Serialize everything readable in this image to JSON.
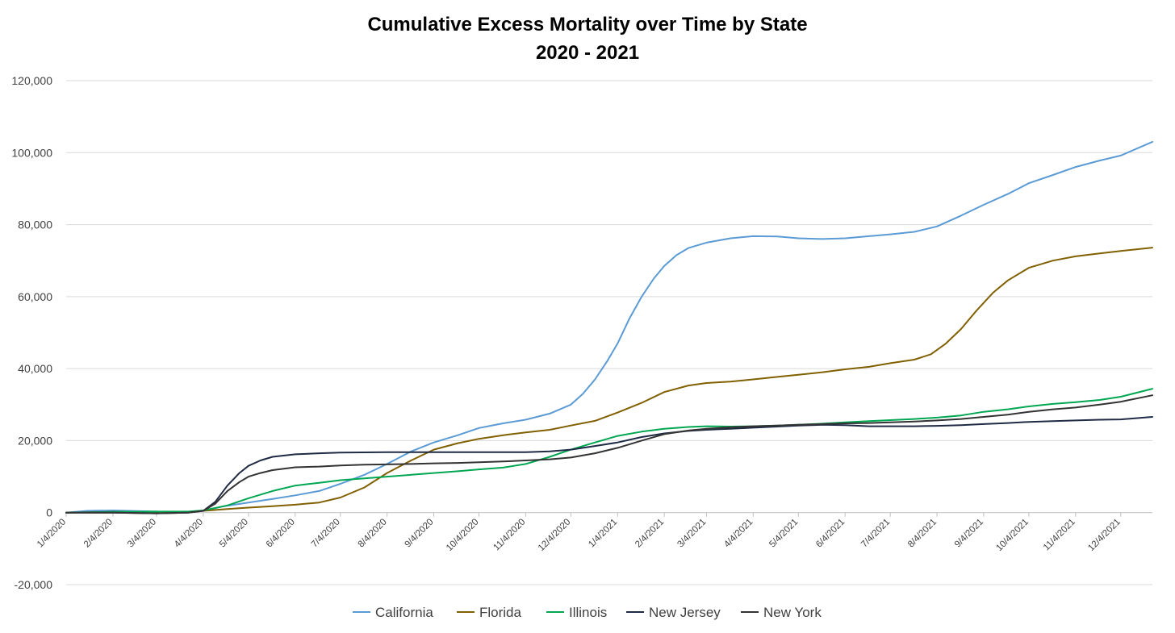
{
  "chart_data": {
    "type": "line",
    "title": "Cumulative Excess Mortality over Time by State",
    "subtitle": "2020 - 2021",
    "xlabel": "",
    "ylabel": "",
    "ylim": [
      -20000,
      120000
    ],
    "yticks": [
      -20000,
      0,
      20000,
      40000,
      60000,
      80000,
      100000,
      120000
    ],
    "ytick_labels": [
      "-20,000",
      "0",
      "20,000",
      "40,000",
      "60,000",
      "80,000",
      "100,000",
      "120,000"
    ],
    "x_tick_labels": [
      "1/4/2020",
      "2/4/2020",
      "3/4/2020",
      "4/4/2020",
      "5/4/2020",
      "6/4/2020",
      "7/4/2020",
      "8/4/2020",
      "9/4/2020",
      "10/4/2020",
      "11/4/2020",
      "12/4/2020",
      "1/4/2021",
      "2/4/2021",
      "3/4/2021",
      "4/4/2021",
      "5/4/2021",
      "6/4/2021",
      "7/4/2021",
      "8/4/2021",
      "9/4/2021",
      "10/4/2021",
      "11/4/2021",
      "12/4/2021"
    ],
    "x_start": "2020-01-04",
    "x_end": "2021-12-25",
    "grid": true,
    "legend_position": "bottom",
    "series": [
      {
        "name": "California",
        "color": "#5b9bd5",
        "points": [
          [
            "2020-01-04",
            0
          ],
          [
            "2020-01-18",
            500
          ],
          [
            "2020-02-04",
            600
          ],
          [
            "2020-03-04",
            300
          ],
          [
            "2020-03-20",
            0
          ],
          [
            "2020-04-04",
            500
          ],
          [
            "2020-04-18",
            1800
          ],
          [
            "2020-05-04",
            2800
          ],
          [
            "2020-05-20",
            3800
          ],
          [
            "2020-06-04",
            4800
          ],
          [
            "2020-06-20",
            6000
          ],
          [
            "2020-07-04",
            8000
          ],
          [
            "2020-07-20",
            10500
          ],
          [
            "2020-08-04",
            13500
          ],
          [
            "2020-08-20",
            17000
          ],
          [
            "2020-09-04",
            19500
          ],
          [
            "2020-09-20",
            21500
          ],
          [
            "2020-10-04",
            23500
          ],
          [
            "2020-10-20",
            24800
          ],
          [
            "2020-11-04",
            25800
          ],
          [
            "2020-11-20",
            27500
          ],
          [
            "2020-12-04",
            30000
          ],
          [
            "2020-12-12",
            33000
          ],
          [
            "2020-12-20",
            37000
          ],
          [
            "2020-12-28",
            42000
          ],
          [
            "2021-01-04",
            47000
          ],
          [
            "2021-01-12",
            54000
          ],
          [
            "2021-01-20",
            60000
          ],
          [
            "2021-01-28",
            65000
          ],
          [
            "2021-02-04",
            68500
          ],
          [
            "2021-02-12",
            71500
          ],
          [
            "2021-02-20",
            73500
          ],
          [
            "2021-03-04",
            75000
          ],
          [
            "2021-03-20",
            76200
          ],
          [
            "2021-04-04",
            76800
          ],
          [
            "2021-04-20",
            76700
          ],
          [
            "2021-05-04",
            76200
          ],
          [
            "2021-05-20",
            76000
          ],
          [
            "2021-06-04",
            76200
          ],
          [
            "2021-06-20",
            76800
          ],
          [
            "2021-07-04",
            77300
          ],
          [
            "2021-07-20",
            78000
          ],
          [
            "2021-08-04",
            79500
          ],
          [
            "2021-08-20",
            82500
          ],
          [
            "2021-09-04",
            85500
          ],
          [
            "2021-09-20",
            88500
          ],
          [
            "2021-10-04",
            91500
          ],
          [
            "2021-10-20",
            93800
          ],
          [
            "2021-11-04",
            96000
          ],
          [
            "2021-11-20",
            97800
          ],
          [
            "2021-12-04",
            99200
          ],
          [
            "2021-12-25",
            103000
          ]
        ]
      },
      {
        "name": "Florida",
        "color": "#806000",
        "points": [
          [
            "2020-01-04",
            0
          ],
          [
            "2020-02-04",
            200
          ],
          [
            "2020-03-04",
            200
          ],
          [
            "2020-03-25",
            200
          ],
          [
            "2020-04-04",
            500
          ],
          [
            "2020-04-20",
            1000
          ],
          [
            "2020-05-04",
            1400
          ],
          [
            "2020-05-20",
            1800
          ],
          [
            "2020-06-04",
            2200
          ],
          [
            "2020-06-20",
            2800
          ],
          [
            "2020-07-04",
            4200
          ],
          [
            "2020-07-20",
            7000
          ],
          [
            "2020-08-04",
            11000
          ],
          [
            "2020-08-20",
            14500
          ],
          [
            "2020-09-04",
            17500
          ],
          [
            "2020-09-20",
            19300
          ],
          [
            "2020-10-04",
            20500
          ],
          [
            "2020-10-20",
            21500
          ],
          [
            "2020-11-04",
            22300
          ],
          [
            "2020-11-20",
            23000
          ],
          [
            "2020-12-04",
            24200
          ],
          [
            "2020-12-20",
            25500
          ],
          [
            "2021-01-04",
            27800
          ],
          [
            "2021-01-20",
            30500
          ],
          [
            "2021-02-04",
            33500
          ],
          [
            "2021-02-20",
            35300
          ],
          [
            "2021-03-04",
            36000
          ],
          [
            "2021-03-20",
            36400
          ],
          [
            "2021-04-04",
            37000
          ],
          [
            "2021-04-20",
            37700
          ],
          [
            "2021-05-04",
            38300
          ],
          [
            "2021-05-20",
            39000
          ],
          [
            "2021-06-04",
            39800
          ],
          [
            "2021-06-20",
            40500
          ],
          [
            "2021-07-04",
            41500
          ],
          [
            "2021-07-20",
            42500
          ],
          [
            "2021-07-31",
            44000
          ],
          [
            "2021-08-10",
            47000
          ],
          [
            "2021-08-20",
            51000
          ],
          [
            "2021-08-30",
            56000
          ],
          [
            "2021-09-10",
            61000
          ],
          [
            "2021-09-20",
            64500
          ],
          [
            "2021-10-04",
            68000
          ],
          [
            "2021-10-20",
            70000
          ],
          [
            "2021-11-04",
            71200
          ],
          [
            "2021-11-20",
            72000
          ],
          [
            "2021-12-04",
            72700
          ],
          [
            "2021-12-25",
            73600
          ]
        ]
      },
      {
        "name": "Illinois",
        "color": "#00a651",
        "points": [
          [
            "2020-01-04",
            0
          ],
          [
            "2020-02-04",
            200
          ],
          [
            "2020-03-04",
            300
          ],
          [
            "2020-03-25",
            300
          ],
          [
            "2020-04-04",
            600
          ],
          [
            "2020-04-20",
            2000
          ],
          [
            "2020-05-04",
            4000
          ],
          [
            "2020-05-20",
            6000
          ],
          [
            "2020-06-04",
            7500
          ],
          [
            "2020-06-20",
            8300
          ],
          [
            "2020-07-04",
            9000
          ],
          [
            "2020-07-20",
            9500
          ],
          [
            "2020-08-04",
            10000
          ],
          [
            "2020-08-20",
            10500
          ],
          [
            "2020-09-04",
            11000
          ],
          [
            "2020-09-20",
            11500
          ],
          [
            "2020-10-04",
            12000
          ],
          [
            "2020-10-20",
            12500
          ],
          [
            "2020-11-04",
            13500
          ],
          [
            "2020-11-20",
            15500
          ],
          [
            "2020-12-04",
            17500
          ],
          [
            "2020-12-20",
            19500
          ],
          [
            "2021-01-04",
            21300
          ],
          [
            "2021-01-20",
            22500
          ],
          [
            "2021-02-04",
            23300
          ],
          [
            "2021-02-20",
            23800
          ],
          [
            "2021-03-04",
            24000
          ],
          [
            "2021-03-20",
            23900
          ],
          [
            "2021-04-04",
            24000
          ],
          [
            "2021-04-20",
            24200
          ],
          [
            "2021-05-04",
            24400
          ],
          [
            "2021-05-20",
            24700
          ],
          [
            "2021-06-04",
            25100
          ],
          [
            "2021-06-20",
            25400
          ],
          [
            "2021-07-04",
            25700
          ],
          [
            "2021-07-20",
            26000
          ],
          [
            "2021-08-04",
            26400
          ],
          [
            "2021-08-20",
            27000
          ],
          [
            "2021-09-04",
            28000
          ],
          [
            "2021-09-20",
            28700
          ],
          [
            "2021-10-04",
            29500
          ],
          [
            "2021-10-20",
            30200
          ],
          [
            "2021-11-04",
            30700
          ],
          [
            "2021-11-20",
            31300
          ],
          [
            "2021-12-04",
            32200
          ],
          [
            "2021-12-25",
            34400
          ]
        ]
      },
      {
        "name": "New Jersey",
        "color": "#1f2a44",
        "points": [
          [
            "2020-01-04",
            0
          ],
          [
            "2020-02-04",
            0
          ],
          [
            "2020-03-04",
            -200
          ],
          [
            "2020-03-25",
            0
          ],
          [
            "2020-04-04",
            500
          ],
          [
            "2020-04-12",
            3000
          ],
          [
            "2020-04-20",
            7500
          ],
          [
            "2020-04-28",
            11000
          ],
          [
            "2020-05-04",
            13000
          ],
          [
            "2020-05-12",
            14500
          ],
          [
            "2020-05-20",
            15500
          ],
          [
            "2020-06-04",
            16200
          ],
          [
            "2020-06-20",
            16500
          ],
          [
            "2020-07-04",
            16700
          ],
          [
            "2020-08-04",
            16800
          ],
          [
            "2020-09-04",
            16800
          ],
          [
            "2020-10-04",
            16800
          ],
          [
            "2020-11-04",
            16800
          ],
          [
            "2020-11-20",
            17000
          ],
          [
            "2020-12-04",
            17500
          ],
          [
            "2020-12-20",
            18500
          ],
          [
            "2021-01-04",
            19500
          ],
          [
            "2021-01-20",
            21000
          ],
          [
            "2021-02-04",
            22000
          ],
          [
            "2021-02-20",
            22700
          ],
          [
            "2021-03-04",
            23000
          ],
          [
            "2021-03-20",
            23300
          ],
          [
            "2021-04-04",
            23600
          ],
          [
            "2021-04-20",
            23900
          ],
          [
            "2021-05-04",
            24200
          ],
          [
            "2021-05-20",
            24400
          ],
          [
            "2021-06-04",
            24300
          ],
          [
            "2021-06-20",
            24000
          ],
          [
            "2021-07-04",
            24000
          ],
          [
            "2021-07-20",
            24000
          ],
          [
            "2021-08-04",
            24100
          ],
          [
            "2021-08-20",
            24300
          ],
          [
            "2021-09-04",
            24600
          ],
          [
            "2021-09-20",
            24900
          ],
          [
            "2021-10-04",
            25200
          ],
          [
            "2021-10-20",
            25400
          ],
          [
            "2021-11-04",
            25600
          ],
          [
            "2021-11-20",
            25800
          ],
          [
            "2021-12-04",
            25900
          ],
          [
            "2021-12-25",
            26600
          ]
        ]
      },
      {
        "name": "New York",
        "color": "#333333",
        "points": [
          [
            "2020-01-04",
            0
          ],
          [
            "2020-02-04",
            0
          ],
          [
            "2020-03-04",
            -200
          ],
          [
            "2020-03-25",
            0
          ],
          [
            "2020-04-04",
            500
          ],
          [
            "2020-04-12",
            2500
          ],
          [
            "2020-04-20",
            6000
          ],
          [
            "2020-04-28",
            8500
          ],
          [
            "2020-05-04",
            10000
          ],
          [
            "2020-05-12",
            11000
          ],
          [
            "2020-05-20",
            11800
          ],
          [
            "2020-06-04",
            12600
          ],
          [
            "2020-06-20",
            12800
          ],
          [
            "2020-07-04",
            13100
          ],
          [
            "2020-07-20",
            13300
          ],
          [
            "2020-08-04",
            13400
          ],
          [
            "2020-08-20",
            13500
          ],
          [
            "2020-09-04",
            13700
          ],
          [
            "2020-09-20",
            13800
          ],
          [
            "2020-10-04",
            14000
          ],
          [
            "2020-10-20",
            14200
          ],
          [
            "2020-11-04",
            14500
          ],
          [
            "2020-11-20",
            14800
          ],
          [
            "2020-12-04",
            15300
          ],
          [
            "2020-12-20",
            16500
          ],
          [
            "2021-01-04",
            18000
          ],
          [
            "2021-01-20",
            20000
          ],
          [
            "2021-02-04",
            21800
          ],
          [
            "2021-02-20",
            22800
          ],
          [
            "2021-03-04",
            23300
          ],
          [
            "2021-03-20",
            23700
          ],
          [
            "2021-04-04",
            24000
          ],
          [
            "2021-04-20",
            24200
          ],
          [
            "2021-05-04",
            24400
          ],
          [
            "2021-05-20",
            24600
          ],
          [
            "2021-06-04",
            24800
          ],
          [
            "2021-06-20",
            24900
          ],
          [
            "2021-07-04",
            25100
          ],
          [
            "2021-07-20",
            25300
          ],
          [
            "2021-08-04",
            25600
          ],
          [
            "2021-08-20",
            26000
          ],
          [
            "2021-09-04",
            26600
          ],
          [
            "2021-09-20",
            27200
          ],
          [
            "2021-10-04",
            28000
          ],
          [
            "2021-10-20",
            28700
          ],
          [
            "2021-11-04",
            29200
          ],
          [
            "2021-11-20",
            30000
          ],
          [
            "2021-12-04",
            30800
          ],
          [
            "2021-12-25",
            32600
          ]
        ]
      }
    ]
  }
}
